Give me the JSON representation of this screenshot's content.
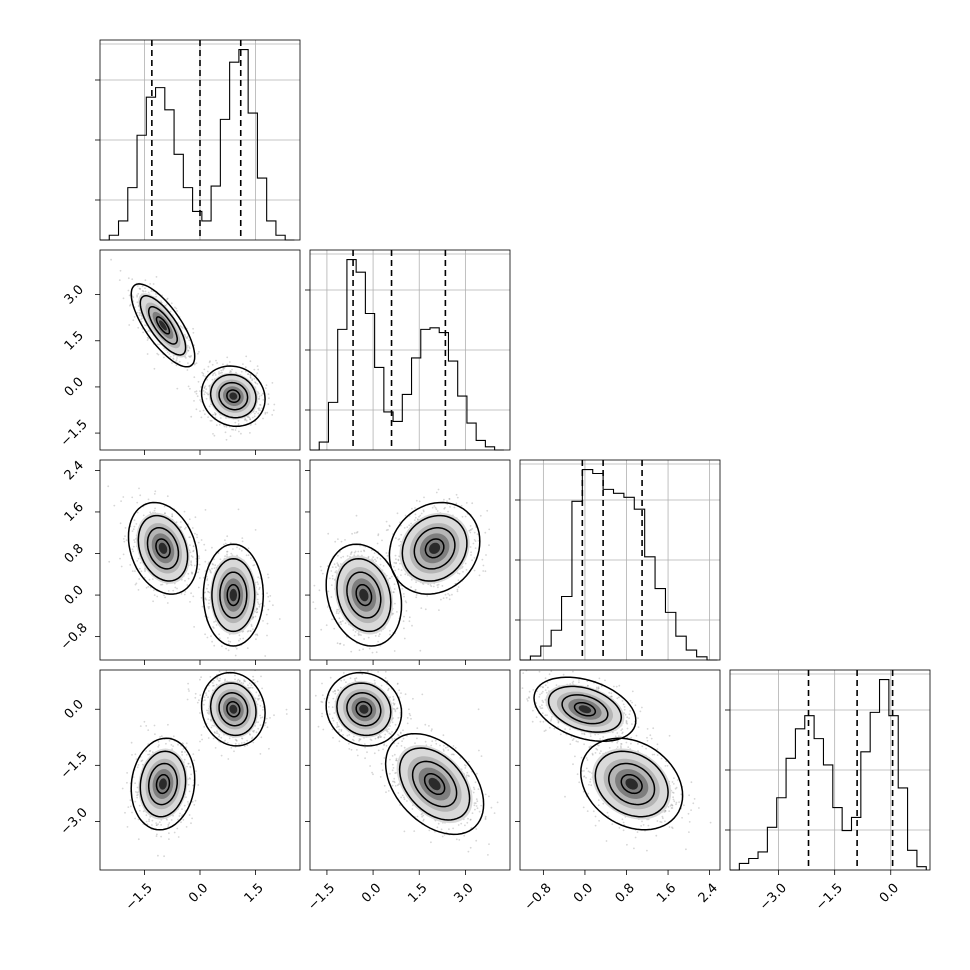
{
  "chart_data": {
    "type": "scatter",
    "title": "",
    "parameters": [
      "",
      "",
      "",
      ""
    ],
    "grid": true,
    "axes": {
      "p0": {
        "range": [
          -2.7,
          2.7
        ],
        "ticks": [
          "-1.5",
          "0.0",
          "1.5"
        ]
      },
      "p1": {
        "range": [
          -2.05,
          4.45
        ],
        "ticks": [
          "-1.5",
          "0.0",
          "1.5",
          "3.0"
        ]
      },
      "p2": {
        "range": [
          -1.25,
          2.6
        ],
        "ticks": [
          "-0.8",
          "0.0",
          "0.8",
          "1.6",
          "2.4"
        ]
      },
      "p3": {
        "range": [
          -4.3,
          1.05
        ],
        "ticks": [
          "-3.0",
          "-1.5",
          "0.0"
        ]
      }
    },
    "quantiles": {
      "p0": [
        -1.3,
        0.0,
        1.1
      ],
      "p1": [
        -0.65,
        0.6,
        2.35
      ],
      "p2": [
        -0.05,
        0.35,
        1.1
      ],
      "p3": [
        -2.2,
        -0.9,
        0.05
      ]
    },
    "modes": {
      "p0": [
        -1.0,
        1.0
      ],
      "p1": [
        -0.3,
        2.0
      ],
      "p2": [
        0.0,
        0.9
      ],
      "p3": [
        -2.0,
        0.0
      ]
    },
    "histograms": {
      "p0": {
        "bin_edges": [
          -2.7,
          -2.45,
          -2.2,
          -1.95,
          -1.7,
          -1.45,
          -1.2,
          -0.95,
          -0.7,
          -0.45,
          -0.2,
          0.05,
          0.3,
          0.55,
          0.8,
          1.05,
          1.3,
          1.55,
          1.8,
          2.05,
          2.3,
          2.55
        ],
        "counts": [
          0,
          15,
          60,
          165,
          330,
          450,
          480,
          410,
          270,
          165,
          90,
          60,
          170,
          380,
          560,
          600,
          400,
          195,
          60,
          15,
          0
        ]
      },
      "p1": {
        "bin_edges": [
          -2.05,
          -1.75,
          -1.45,
          -1.15,
          -0.85,
          -0.55,
          -0.25,
          0.05,
          0.35,
          0.65,
          0.95,
          1.25,
          1.55,
          1.85,
          2.15,
          2.45,
          2.75,
          3.05,
          3.35,
          3.65,
          3.95,
          4.25
        ],
        "counts": [
          0,
          25,
          150,
          380,
          600,
          560,
          430,
          260,
          120,
          90,
          175,
          290,
          380,
          385,
          370,
          280,
          170,
          85,
          30,
          10,
          0
        ]
      },
      "p2": {
        "bin_edges": [
          -1.25,
          -1.05,
          -0.85,
          -0.65,
          -0.45,
          -0.25,
          -0.05,
          0.15,
          0.35,
          0.55,
          0.75,
          0.95,
          1.15,
          1.35,
          1.55,
          1.75,
          1.95,
          2.15,
          2.35,
          2.55
        ],
        "counts": [
          0,
          10,
          35,
          75,
          160,
          400,
          480,
          470,
          430,
          420,
          410,
          380,
          260,
          180,
          120,
          60,
          25,
          8,
          0
        ]
      },
      "p3": {
        "bin_edges": [
          -4.3,
          -4.05,
          -3.8,
          -3.55,
          -3.3,
          -3.05,
          -2.8,
          -2.55,
          -2.3,
          -2.05,
          -1.8,
          -1.55,
          -1.3,
          -1.05,
          -0.8,
          -0.55,
          -0.3,
          -0.05,
          0.2,
          0.45,
          0.7,
          0.95
        ],
        "counts": [
          0,
          20,
          35,
          55,
          130,
          220,
          340,
          430,
          470,
          400,
          320,
          190,
          120,
          160,
          360,
          480,
          580,
          470,
          250,
          60,
          10
        ]
      }
    },
    "pairs": [
      {
        "x": "p0",
        "y": "p1",
        "modes": [
          {
            "x": -1.0,
            "y": 2.0,
            "sx": 0.35,
            "sy": 0.55,
            "rho": -0.75
          },
          {
            "x": 0.9,
            "y": -0.3,
            "sx": 0.35,
            "sy": 0.4,
            "rho": -0.1
          }
        ]
      },
      {
        "x": "p0",
        "y": "p2",
        "modes": [
          {
            "x": -1.0,
            "y": 0.9,
            "sx": 0.38,
            "sy": 0.36,
            "rho": -0.25
          },
          {
            "x": 0.9,
            "y": 0.0,
            "sx": 0.33,
            "sy": 0.4,
            "rho": 0.0
          }
        ]
      },
      {
        "x": "p1",
        "y": "p2",
        "modes": [
          {
            "x": -0.3,
            "y": 0.0,
            "sx": 0.5,
            "sy": 0.4,
            "rho": -0.2
          },
          {
            "x": 2.0,
            "y": 0.9,
            "sx": 0.6,
            "sy": 0.36,
            "rho": 0.15
          }
        ]
      },
      {
        "x": "p0",
        "y": "p3",
        "modes": [
          {
            "x": -1.0,
            "y": -2.0,
            "sx": 0.35,
            "sy": 0.5,
            "rho": 0.1
          },
          {
            "x": 0.9,
            "y": 0.0,
            "sx": 0.35,
            "sy": 0.4,
            "rho": -0.1
          }
        ]
      },
      {
        "x": "p1",
        "y": "p3",
        "modes": [
          {
            "x": -0.3,
            "y": 0.0,
            "sx": 0.5,
            "sy": 0.4,
            "rho": -0.1
          },
          {
            "x": 2.0,
            "y": -2.0,
            "sx": 0.65,
            "sy": 0.55,
            "rho": -0.4
          }
        ]
      },
      {
        "x": "p2",
        "y": "p3",
        "modes": [
          {
            "x": 0.0,
            "y": 0.0,
            "sx": 0.4,
            "sy": 0.35,
            "rho": -0.35
          },
          {
            "x": 0.9,
            "y": -2.0,
            "sx": 0.4,
            "sy": 0.5,
            "rho": -0.25
          }
        ]
      }
    ]
  }
}
